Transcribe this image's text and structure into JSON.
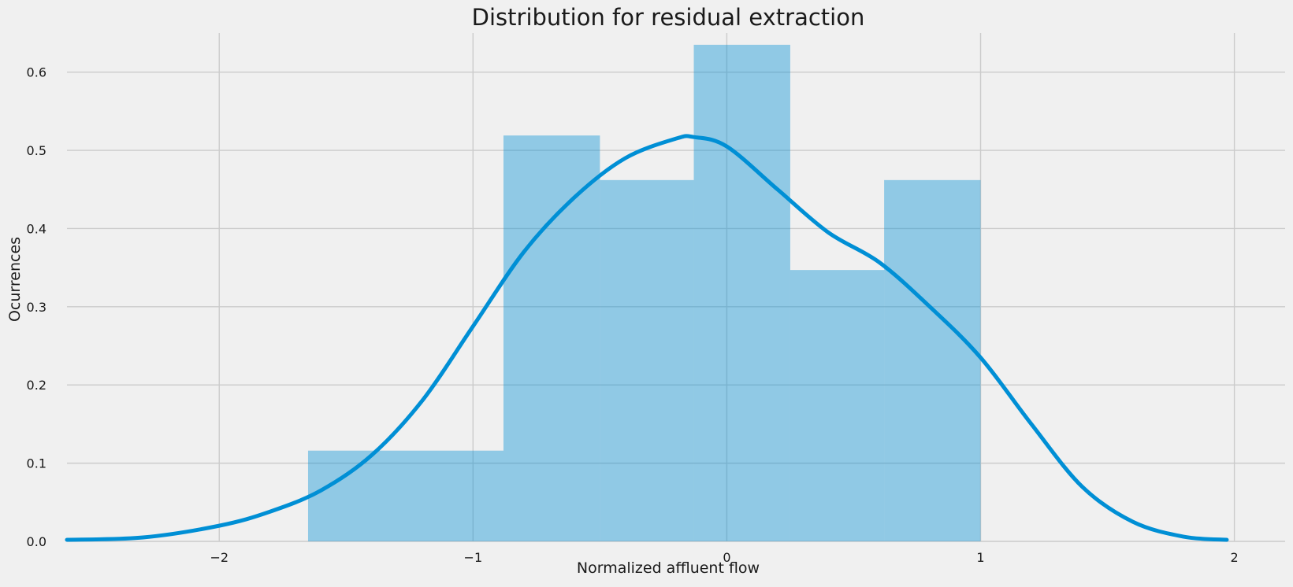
{
  "chart_data": {
    "type": "histogram",
    "title": "Distribution for residual extraction",
    "xlabel": "Normalized affluent flow",
    "ylabel": "Ocurrences",
    "xlim": [
      -2.6,
      2.2
    ],
    "ylim": [
      0,
      0.65
    ],
    "grid": true,
    "x_ticks": [
      -2,
      -1,
      0,
      1,
      2
    ],
    "x_tick_labels": [
      "−2",
      "−1",
      "0",
      "1",
      "2"
    ],
    "y_ticks": [
      0,
      0.1,
      0.2,
      0.3,
      0.4,
      0.5,
      0.6
    ],
    "y_tick_labels": [
      "0.0",
      "0.1",
      "0.2",
      "0.3",
      "0.4",
      "0.5",
      "0.6"
    ],
    "bins": [
      {
        "x0": -1.65,
        "x1": -0.88,
        "value": 0.116
      },
      {
        "x0": -0.88,
        "x1": -0.5,
        "value": 0.519
      },
      {
        "x0": -0.5,
        "x1": -0.13,
        "value": 0.462
      },
      {
        "x0": -0.13,
        "x1": 0.25,
        "value": 0.635
      },
      {
        "x0": 0.25,
        "x1": 0.62,
        "value": 0.347
      },
      {
        "x0": 0.62,
        "x1": 1.0,
        "value": 0.462
      }
    ],
    "kde": {
      "x": [
        -2.6,
        -2.3,
        -2.0,
        -1.8,
        -1.6,
        -1.4,
        -1.2,
        -1.0,
        -0.8,
        -0.6,
        -0.4,
        -0.2,
        -0.13,
        0.0,
        0.2,
        0.4,
        0.6,
        0.8,
        1.0,
        1.2,
        1.4,
        1.6,
        1.8,
        1.97
      ],
      "y": [
        0.002,
        0.005,
        0.02,
        0.038,
        0.065,
        0.11,
        0.18,
        0.275,
        0.37,
        0.44,
        0.49,
        0.515,
        0.517,
        0.505,
        0.45,
        0.395,
        0.357,
        0.3,
        0.235,
        0.15,
        0.07,
        0.025,
        0.006,
        0.002
      ]
    },
    "colors": {
      "bar": "#008fd5",
      "line": "#008fd5",
      "background": "#f0f0f0",
      "grid": "#cbcbcb"
    }
  }
}
